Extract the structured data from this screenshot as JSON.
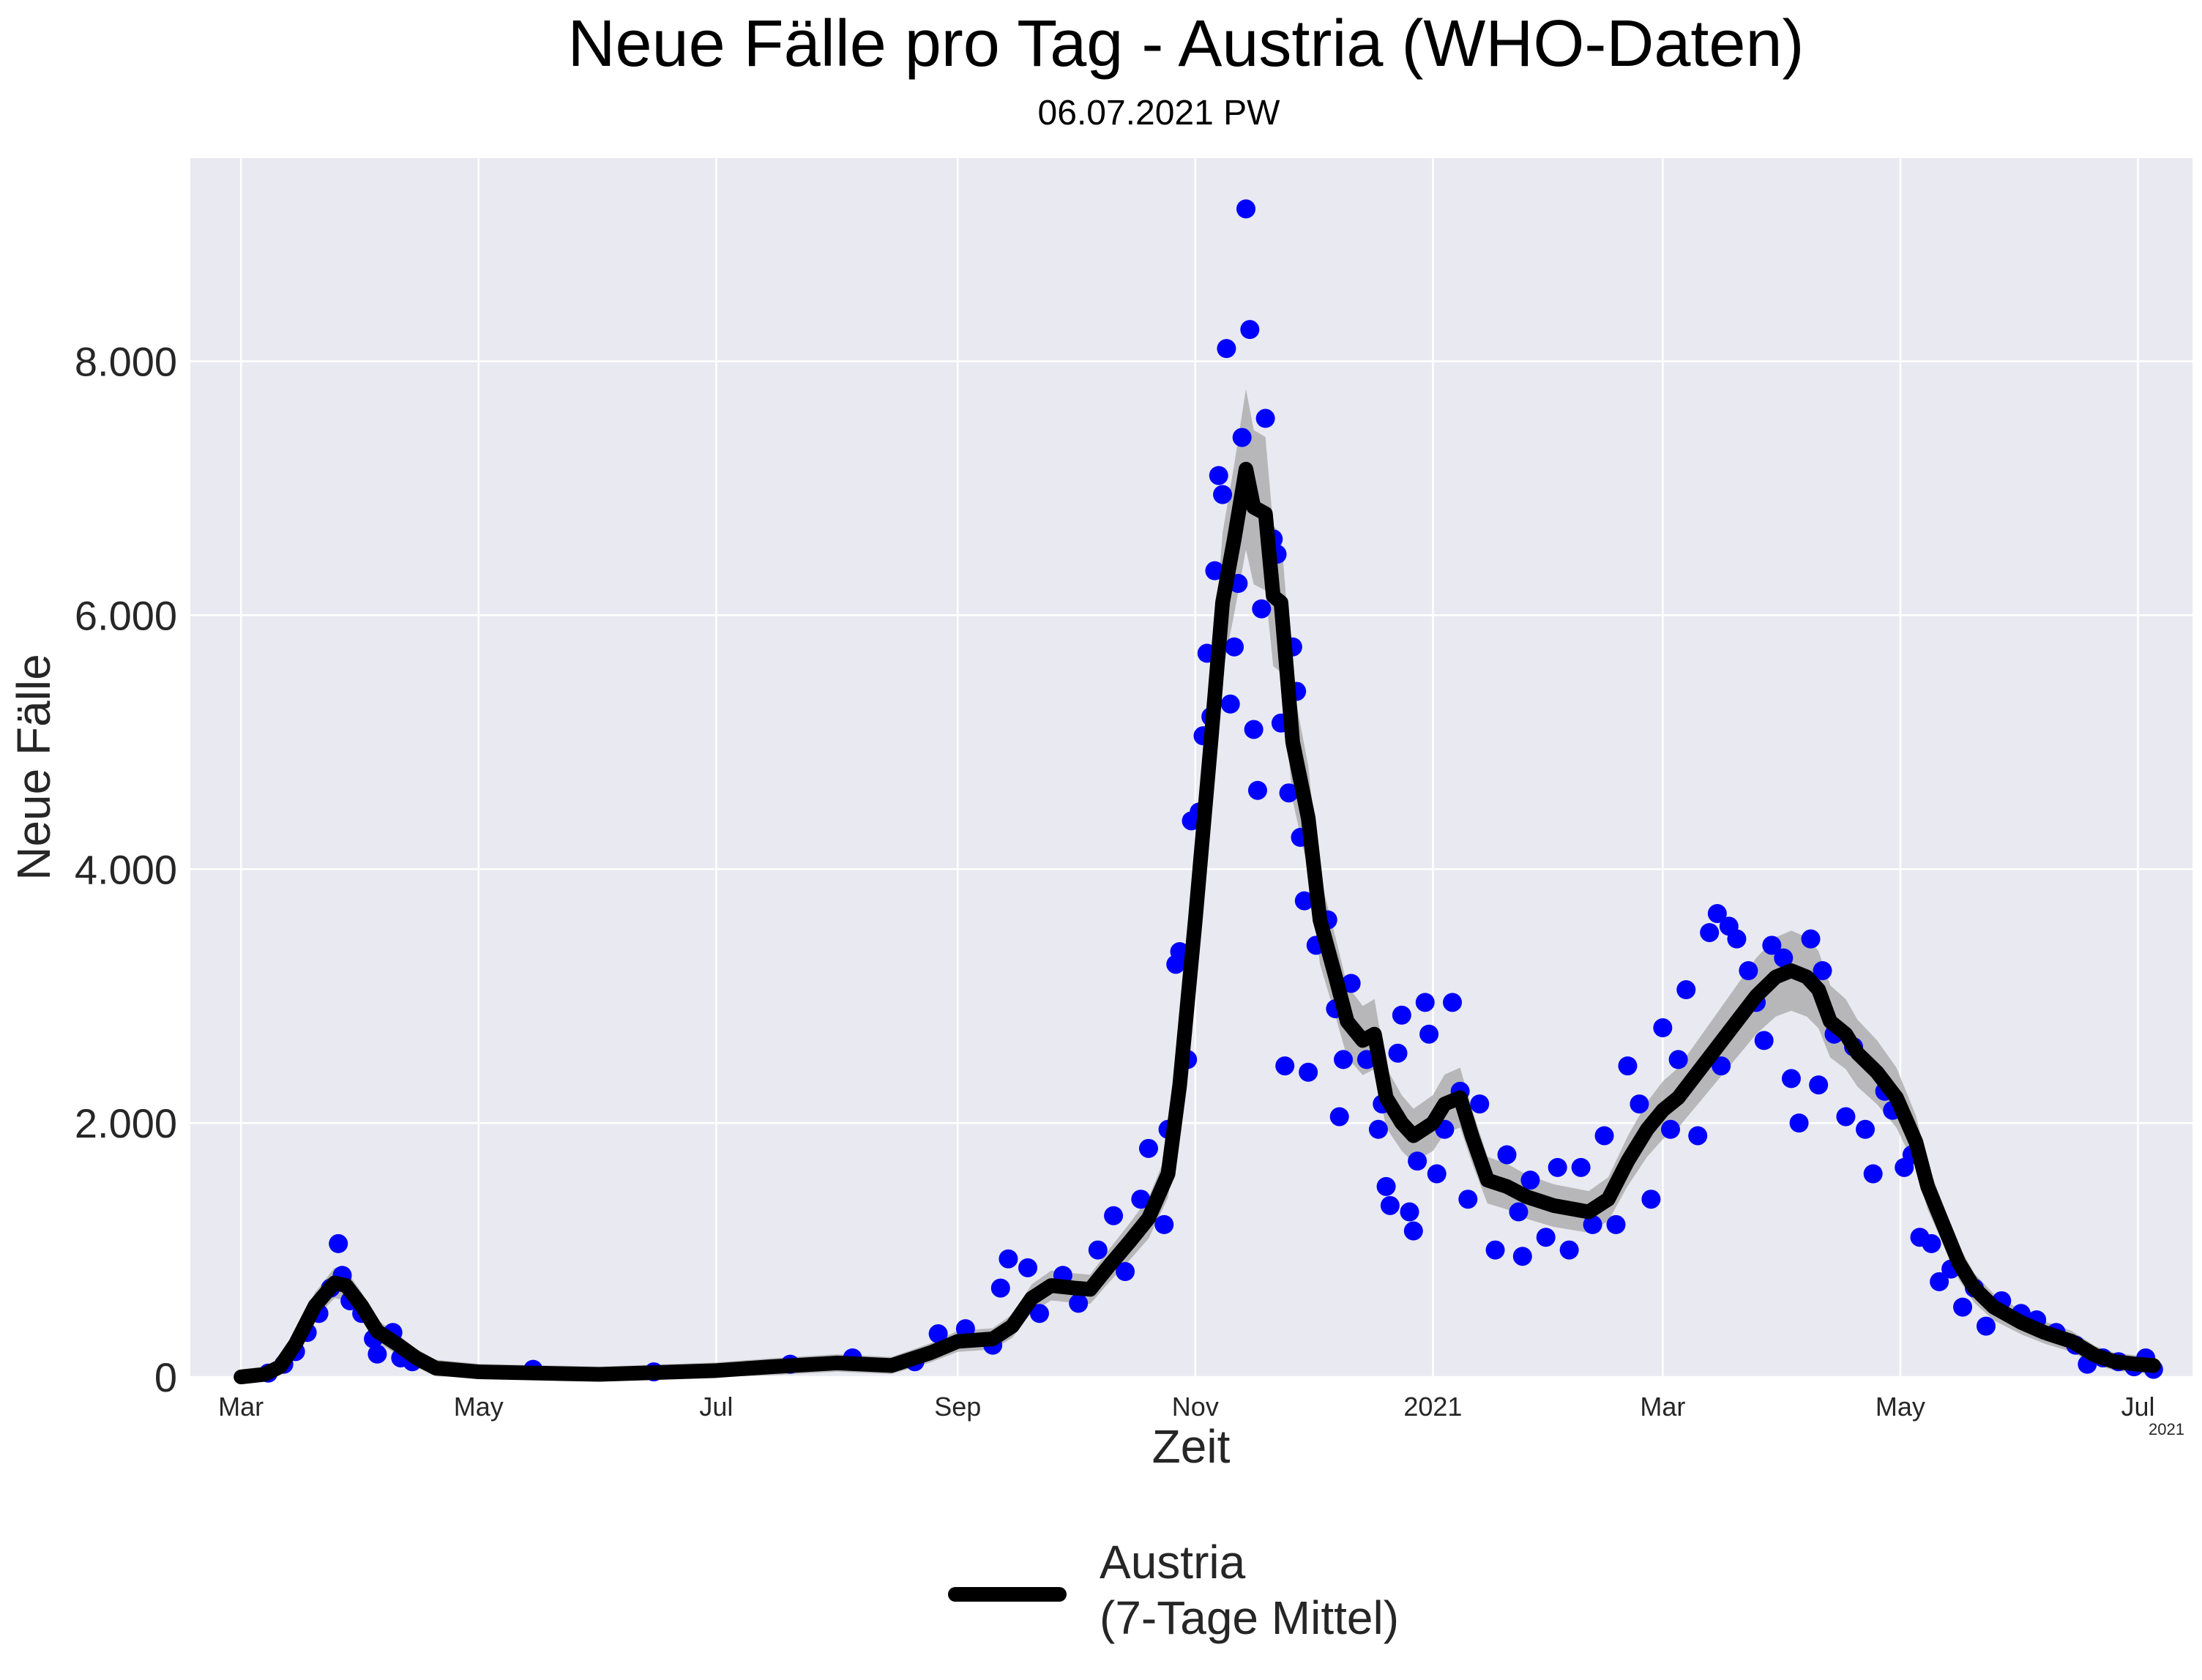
{
  "colors": {
    "plot_bg": "#e9e9f1",
    "grid": "#ffffff",
    "points": "#0000ff",
    "line": "#000000",
    "band": "#a6a6a6"
  },
  "chart_data": {
    "type": "line",
    "title": "Neue Fälle pro Tag - Austria (WHO-Daten)",
    "subtitle": "06.07.2021 PW",
    "xlabel": "Zeit",
    "ylabel": "Neue Fälle",
    "x_offset_label": "2021",
    "x_range": [
      "2020-02-17",
      "2021-07-15"
    ],
    "ylim": [
      0,
      9600
    ],
    "yticks": [
      0,
      2000,
      4000,
      6000,
      8000
    ],
    "ytick_labels": [
      "0",
      "2.000",
      "4.000",
      "6.000",
      "8.000"
    ],
    "xticks": [
      {
        "date": "2020-03-01",
        "label": "Mar"
      },
      {
        "date": "2020-05-01",
        "label": "May"
      },
      {
        "date": "2020-07-01",
        "label": "Jul"
      },
      {
        "date": "2020-09-01",
        "label": "Sep"
      },
      {
        "date": "2020-11-01",
        "label": "Nov"
      },
      {
        "date": "2021-01-01",
        "label": "2021"
      },
      {
        "date": "2021-03-01",
        "label": "Mar"
      },
      {
        "date": "2021-05-01",
        "label": "May"
      },
      {
        "date": "2021-07-01",
        "label": "Jul"
      }
    ],
    "grid": true,
    "legend_position": "bottom-center",
    "series": [
      {
        "name": "Austria\n(7-Tage Mittel)",
        "kind": "line",
        "values": [
          [
            "2020-03-01",
            0
          ],
          [
            "2020-03-07",
            20
          ],
          [
            "2020-03-11",
            80
          ],
          [
            "2020-03-15",
            260
          ],
          [
            "2020-03-20",
            560
          ],
          [
            "2020-03-25",
            740
          ],
          [
            "2020-03-28",
            720
          ],
          [
            "2020-04-01",
            560
          ],
          [
            "2020-04-05",
            360
          ],
          [
            "2020-04-10",
            260
          ],
          [
            "2020-04-15",
            150
          ],
          [
            "2020-04-20",
            70
          ],
          [
            "2020-05-01",
            40
          ],
          [
            "2020-06-01",
            20
          ],
          [
            "2020-07-01",
            50
          ],
          [
            "2020-07-15",
            80
          ],
          [
            "2020-08-01",
            110
          ],
          [
            "2020-08-15",
            90
          ],
          [
            "2020-08-25",
            190
          ],
          [
            "2020-09-01",
            280
          ],
          [
            "2020-09-10",
            300
          ],
          [
            "2020-09-15",
            400
          ],
          [
            "2020-09-20",
            620
          ],
          [
            "2020-09-25",
            720
          ],
          [
            "2020-10-01",
            700
          ],
          [
            "2020-10-05",
            690
          ],
          [
            "2020-10-10",
            880
          ],
          [
            "2020-10-15",
            1060
          ],
          [
            "2020-10-20",
            1250
          ],
          [
            "2020-10-25",
            1600
          ],
          [
            "2020-10-28",
            2300
          ],
          [
            "2020-11-01",
            3600
          ],
          [
            "2020-11-05",
            5000
          ],
          [
            "2020-11-08",
            6100
          ],
          [
            "2020-11-11",
            6600
          ],
          [
            "2020-11-14",
            7150
          ],
          [
            "2020-11-16",
            6850
          ],
          [
            "2020-11-19",
            6800
          ],
          [
            "2020-11-21",
            6150
          ],
          [
            "2020-11-23",
            6100
          ],
          [
            "2020-11-26",
            5000
          ],
          [
            "2020-11-30",
            4400
          ],
          [
            "2020-12-03",
            3600
          ],
          [
            "2020-12-07",
            3150
          ],
          [
            "2020-12-10",
            2800
          ],
          [
            "2020-12-14",
            2650
          ],
          [
            "2020-12-17",
            2700
          ],
          [
            "2020-12-20",
            2200
          ],
          [
            "2020-12-24",
            2000
          ],
          [
            "2020-12-27",
            1900
          ],
          [
            "2021-01-01",
            2000
          ],
          [
            "2021-01-04",
            2150
          ],
          [
            "2021-01-08",
            2200
          ],
          [
            "2021-01-11",
            1900
          ],
          [
            "2021-01-15",
            1550
          ],
          [
            "2021-01-20",
            1500
          ],
          [
            "2021-01-25",
            1420
          ],
          [
            "2021-02-01",
            1350
          ],
          [
            "2021-02-10",
            1300
          ],
          [
            "2021-02-15",
            1400
          ],
          [
            "2021-02-20",
            1700
          ],
          [
            "2021-02-25",
            1950
          ],
          [
            "2021-03-01",
            2100
          ],
          [
            "2021-03-05",
            2200
          ],
          [
            "2021-03-10",
            2400
          ],
          [
            "2021-03-15",
            2600
          ],
          [
            "2021-03-20",
            2800
          ],
          [
            "2021-03-25",
            3000
          ],
          [
            "2021-03-30",
            3150
          ],
          [
            "2021-04-03",
            3200
          ],
          [
            "2021-04-07",
            3150
          ],
          [
            "2021-04-10",
            3050
          ],
          [
            "2021-04-13",
            2800
          ],
          [
            "2021-04-17",
            2700
          ],
          [
            "2021-04-20",
            2550
          ],
          [
            "2021-04-25",
            2400
          ],
          [
            "2021-04-30",
            2200
          ],
          [
            "2021-05-05",
            1850
          ],
          [
            "2021-05-08",
            1500
          ],
          [
            "2021-05-12",
            1200
          ],
          [
            "2021-05-16",
            900
          ],
          [
            "2021-05-20",
            700
          ],
          [
            "2021-05-25",
            550
          ],
          [
            "2021-06-01",
            430
          ],
          [
            "2021-06-07",
            350
          ],
          [
            "2021-06-14",
            280
          ],
          [
            "2021-06-20",
            170
          ],
          [
            "2021-06-25",
            120
          ],
          [
            "2021-07-01",
            100
          ],
          [
            "2021-07-05",
            90
          ]
        ]
      },
      {
        "kind": "scatter",
        "values": [
          [
            "2020-03-08",
            30
          ],
          [
            "2020-03-12",
            100
          ],
          [
            "2020-03-15",
            200
          ],
          [
            "2020-03-18",
            350
          ],
          [
            "2020-03-21",
            500
          ],
          [
            "2020-03-24",
            700
          ],
          [
            "2020-03-26",
            1050
          ],
          [
            "2020-03-27",
            800
          ],
          [
            "2020-03-29",
            600
          ],
          [
            "2020-04-01",
            500
          ],
          [
            "2020-04-04",
            300
          ],
          [
            "2020-04-05",
            180
          ],
          [
            "2020-04-09",
            350
          ],
          [
            "2020-04-11",
            150
          ],
          [
            "2020-04-14",
            120
          ],
          [
            "2020-05-15",
            60
          ],
          [
            "2020-06-15",
            40
          ],
          [
            "2020-07-20",
            100
          ],
          [
            "2020-08-05",
            150
          ],
          [
            "2020-08-21",
            120
          ],
          [
            "2020-08-27",
            340
          ],
          [
            "2020-09-03",
            380
          ],
          [
            "2020-09-10",
            250
          ],
          [
            "2020-09-12",
            700
          ],
          [
            "2020-09-14",
            930
          ],
          [
            "2020-09-19",
            860
          ],
          [
            "2020-09-22",
            500
          ],
          [
            "2020-09-28",
            800
          ],
          [
            "2020-10-02",
            580
          ],
          [
            "2020-10-07",
            1000
          ],
          [
            "2020-10-11",
            1270
          ],
          [
            "2020-10-14",
            830
          ],
          [
            "2020-10-18",
            1400
          ],
          [
            "2020-10-20",
            1800
          ],
          [
            "2020-10-24",
            1200
          ],
          [
            "2020-10-25",
            1950
          ],
          [
            "2020-10-27",
            3250
          ],
          [
            "2020-10-28",
            3350
          ],
          [
            "2020-10-30",
            2500
          ],
          [
            "2020-10-31",
            4380
          ],
          [
            "2020-11-02",
            4450
          ],
          [
            "2020-11-03",
            5050
          ],
          [
            "2020-11-04",
            5700
          ],
          [
            "2020-11-05",
            5200
          ],
          [
            "2020-11-06",
            6350
          ],
          [
            "2020-11-07",
            7100
          ],
          [
            "2020-11-08",
            6950
          ],
          [
            "2020-11-09",
            8100
          ],
          [
            "2020-11-10",
            5300
          ],
          [
            "2020-11-11",
            5750
          ],
          [
            "2020-11-12",
            6250
          ],
          [
            "2020-11-13",
            7400
          ],
          [
            "2020-11-14",
            9200
          ],
          [
            "2020-11-15",
            8250
          ],
          [
            "2020-11-16",
            5100
          ],
          [
            "2020-11-17",
            4620
          ],
          [
            "2020-11-18",
            6050
          ],
          [
            "2020-11-19",
            7550
          ],
          [
            "2020-11-21",
            6600
          ],
          [
            "2020-11-22",
            6480
          ],
          [
            "2020-11-23",
            5150
          ],
          [
            "2020-11-24",
            2450
          ],
          [
            "2020-11-25",
            4600
          ],
          [
            "2020-11-26",
            5750
          ],
          [
            "2020-11-27",
            5400
          ],
          [
            "2020-11-28",
            4250
          ],
          [
            "2020-11-29",
            3750
          ],
          [
            "2020-11-30",
            2400
          ],
          [
            "2020-12-02",
            3400
          ],
          [
            "2020-12-05",
            3600
          ],
          [
            "2020-12-07",
            2900
          ],
          [
            "2020-12-08",
            2050
          ],
          [
            "2020-12-09",
            2500
          ],
          [
            "2020-12-11",
            3100
          ],
          [
            "2020-12-15",
            2500
          ],
          [
            "2020-12-18",
            1950
          ],
          [
            "2020-12-19",
            2150
          ],
          [
            "2020-12-20",
            1500
          ],
          [
            "2020-12-21",
            1350
          ],
          [
            "2020-12-23",
            2550
          ],
          [
            "2020-12-24",
            2850
          ],
          [
            "2020-12-26",
            1300
          ],
          [
            "2020-12-27",
            1150
          ],
          [
            "2020-12-28",
            1700
          ],
          [
            "2020-12-30",
            2950
          ],
          [
            "2020-12-31",
            2700
          ],
          [
            "2021-01-02",
            1600
          ],
          [
            "2021-01-04",
            1950
          ],
          [
            "2021-01-06",
            2950
          ],
          [
            "2021-01-08",
            2250
          ],
          [
            "2021-01-10",
            1400
          ],
          [
            "2021-01-13",
            2150
          ],
          [
            "2021-01-17",
            1000
          ],
          [
            "2021-01-20",
            1750
          ],
          [
            "2021-01-23",
            1300
          ],
          [
            "2021-01-24",
            950
          ],
          [
            "2021-01-26",
            1550
          ],
          [
            "2021-01-30",
            1100
          ],
          [
            "2021-02-02",
            1650
          ],
          [
            "2021-02-05",
            1000
          ],
          [
            "2021-02-08",
            1650
          ],
          [
            "2021-02-11",
            1200
          ],
          [
            "2021-02-14",
            1900
          ],
          [
            "2021-02-17",
            1200
          ],
          [
            "2021-02-20",
            2450
          ],
          [
            "2021-02-23",
            2150
          ],
          [
            "2021-02-26",
            1400
          ],
          [
            "2021-03-01",
            2750
          ],
          [
            "2021-03-03",
            1950
          ],
          [
            "2021-03-05",
            2500
          ],
          [
            "2021-03-07",
            3050
          ],
          [
            "2021-03-10",
            1900
          ],
          [
            "2021-03-13",
            3500
          ],
          [
            "2021-03-15",
            3650
          ],
          [
            "2021-03-16",
            2450
          ],
          [
            "2021-03-18",
            3550
          ],
          [
            "2021-03-20",
            3450
          ],
          [
            "2021-03-23",
            3200
          ],
          [
            "2021-03-25",
            2950
          ],
          [
            "2021-03-27",
            2650
          ],
          [
            "2021-03-29",
            3400
          ],
          [
            "2021-04-01",
            3300
          ],
          [
            "2021-04-03",
            2350
          ],
          [
            "2021-04-05",
            2000
          ],
          [
            "2021-04-08",
            3450
          ],
          [
            "2021-04-10",
            2300
          ],
          [
            "2021-04-11",
            3200
          ],
          [
            "2021-04-14",
            2700
          ],
          [
            "2021-04-17",
            2050
          ],
          [
            "2021-04-19",
            2600
          ],
          [
            "2021-04-22",
            1950
          ],
          [
            "2021-04-24",
            1600
          ],
          [
            "2021-04-27",
            2250
          ],
          [
            "2021-04-29",
            2100
          ],
          [
            "2021-05-02",
            1650
          ],
          [
            "2021-05-04",
            1750
          ],
          [
            "2021-05-06",
            1100
          ],
          [
            "2021-05-09",
            1050
          ],
          [
            "2021-05-11",
            750
          ],
          [
            "2021-05-14",
            850
          ],
          [
            "2021-05-17",
            550
          ],
          [
            "2021-05-20",
            700
          ],
          [
            "2021-05-23",
            400
          ],
          [
            "2021-05-27",
            600
          ],
          [
            "2021-06-01",
            500
          ],
          [
            "2021-06-05",
            450
          ],
          [
            "2021-06-10",
            350
          ],
          [
            "2021-06-15",
            250
          ],
          [
            "2021-06-18",
            100
          ],
          [
            "2021-06-22",
            150
          ],
          [
            "2021-06-26",
            120
          ],
          [
            "2021-06-30",
            80
          ],
          [
            "2021-07-03",
            150
          ],
          [
            "2021-07-05",
            60
          ]
        ]
      }
    ]
  }
}
